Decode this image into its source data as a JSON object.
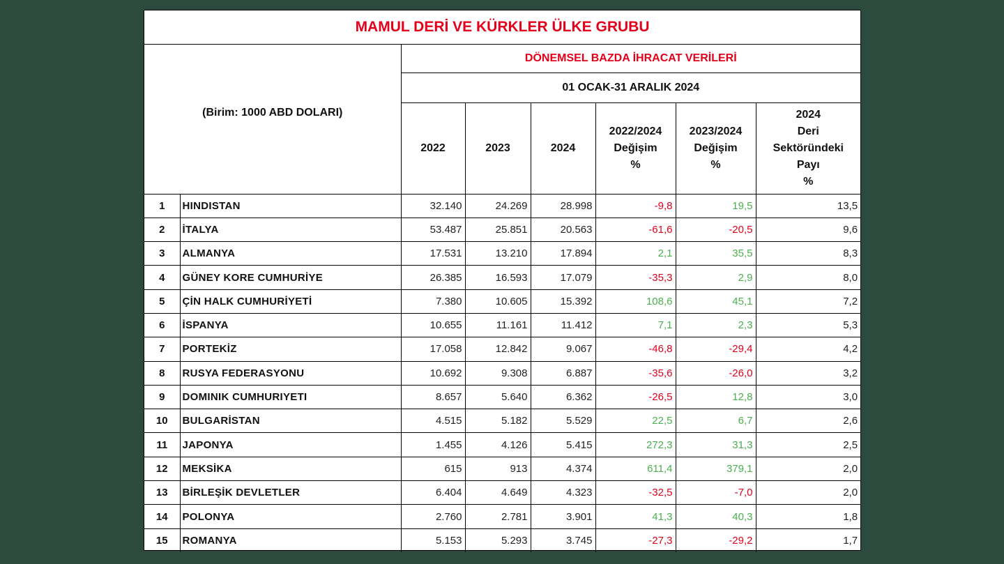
{
  "title": "MAMUL DERİ VE KÜRKLER ÜLKE GRUBU",
  "unit": "(Birim: 1000 ABD DOLARI)",
  "subtitle": "DÖNEMSEL BAZDA İHRACAT VERİLERİ",
  "period": "01 OCAK-31 ARALIK 2024",
  "columns": {
    "y2022": "2022",
    "y2023": "2023",
    "y2024": "2024",
    "ch2224": [
      "2022/2024",
      "Değişim",
      "%"
    ],
    "ch2324": [
      "2023/2024",
      "Değişim",
      "%"
    ],
    "share": [
      "2024",
      "Deri",
      "Sektöründeki",
      "Payı",
      "%"
    ]
  },
  "colors": {
    "negative": "#e3001b",
    "positive": "#4caf50",
    "title": "#e3001b"
  },
  "rows": [
    {
      "rank": "1",
      "country": "HINDISTAN",
      "v2022": "32.140",
      "v2023": "24.269",
      "v2024": "28.998",
      "ch2224": "-9,8",
      "ch2324": "19,5",
      "share": "13,5"
    },
    {
      "rank": "2",
      "country": "İTALYA",
      "v2022": "53.487",
      "v2023": "25.851",
      "v2024": "20.563",
      "ch2224": "-61,6",
      "ch2324": "-20,5",
      "share": "9,6"
    },
    {
      "rank": "3",
      "country": "ALMANYA",
      "v2022": "17.531",
      "v2023": "13.210",
      "v2024": "17.894",
      "ch2224": "2,1",
      "ch2324": "35,5",
      "share": "8,3"
    },
    {
      "rank": "4",
      "country": "GÜNEY KORE CUMHURİYE",
      "v2022": "26.385",
      "v2023": "16.593",
      "v2024": "17.079",
      "ch2224": "-35,3",
      "ch2324": "2,9",
      "share": "8,0"
    },
    {
      "rank": "5",
      "country": "ÇİN HALK CUMHURİYETİ",
      "v2022": "7.380",
      "v2023": "10.605",
      "v2024": "15.392",
      "ch2224": "108,6",
      "ch2324": "45,1",
      "share": "7,2"
    },
    {
      "rank": "6",
      "country": "İSPANYA",
      "v2022": "10.655",
      "v2023": "11.161",
      "v2024": "11.412",
      "ch2224": "7,1",
      "ch2324": "2,3",
      "share": "5,3"
    },
    {
      "rank": "7",
      "country": "PORTEKİZ",
      "v2022": "17.058",
      "v2023": "12.842",
      "v2024": "9.067",
      "ch2224": "-46,8",
      "ch2324": "-29,4",
      "share": "4,2"
    },
    {
      "rank": "8",
      "country": "RUSYA FEDERASYONU",
      "v2022": "10.692",
      "v2023": "9.308",
      "v2024": "6.887",
      "ch2224": "-35,6",
      "ch2324": "-26,0",
      "share": "3,2"
    },
    {
      "rank": "9",
      "country": "DOMINIK CUMHURIYETI",
      "v2022": "8.657",
      "v2023": "5.640",
      "v2024": "6.362",
      "ch2224": "-26,5",
      "ch2324": "12,8",
      "share": "3,0"
    },
    {
      "rank": "10",
      "country": "BULGARİSTAN",
      "v2022": "4.515",
      "v2023": "5.182",
      "v2024": "5.529",
      "ch2224": "22,5",
      "ch2324": "6,7",
      "share": "2,6"
    },
    {
      "rank": "11",
      "country": "JAPONYA",
      "v2022": "1.455",
      "v2023": "4.126",
      "v2024": "5.415",
      "ch2224": "272,3",
      "ch2324": "31,3",
      "share": "2,5"
    },
    {
      "rank": "12",
      "country": "MEKSİKA",
      "v2022": "615",
      "v2023": "913",
      "v2024": "4.374",
      "ch2224": "611,4",
      "ch2324": "379,1",
      "share": "2,0"
    },
    {
      "rank": "13",
      "country": "BİRLEŞİK DEVLETLER",
      "v2022": "6.404",
      "v2023": "4.649",
      "v2024": "4.323",
      "ch2224": "-32,5",
      "ch2324": "-7,0",
      "share": "2,0"
    },
    {
      "rank": "14",
      "country": "POLONYA",
      "v2022": "2.760",
      "v2023": "2.781",
      "v2024": "3.901",
      "ch2224": "41,3",
      "ch2324": "40,3",
      "share": "1,8"
    },
    {
      "rank": "15",
      "country": "ROMANYA",
      "v2022": "5.153",
      "v2023": "5.293",
      "v2024": "3.745",
      "ch2224": "-27,3",
      "ch2324": "-29,2",
      "share": "1,7"
    }
  ]
}
